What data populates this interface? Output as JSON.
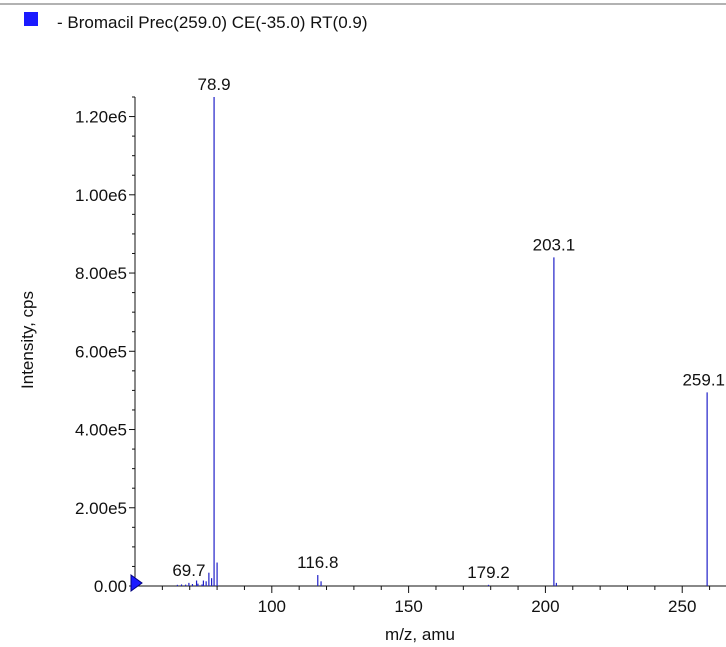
{
  "chart_data": {
    "type": "bar",
    "title": "- Bromacil Prec(259.0) CE(-35.0) RT(0.9)",
    "xlabel": "m/z, amu",
    "ylabel": "Intensity, cps",
    "xlim": [
      50,
      266
    ],
    "ylim": [
      0,
      1250000
    ],
    "x_ticks": [
      100,
      150,
      200,
      250
    ],
    "x_tick_labels": [
      "100",
      "150",
      "200",
      "250"
    ],
    "y_ticks": [
      0,
      200000,
      400000,
      600000,
      800000,
      1000000,
      1200000
    ],
    "y_tick_labels": [
      "0.00",
      "2.00e5",
      "4.00e5",
      "6.00e5",
      "8.00e5",
      "1.00e6",
      "1.20e6"
    ],
    "legend_color": "#1a1aff",
    "bar_color": "#2020c8",
    "series": [
      {
        "x": [
          65.5,
          67.0,
          68.5,
          69.7,
          71.0,
          72.5,
          73.0,
          74.5,
          75.0,
          76.0,
          77.0,
          78.0,
          78.9,
          80.0,
          116.8,
          118.0,
          179.2,
          203.1,
          204.0,
          259.1
        ],
        "values": [
          3000,
          4000,
          3500,
          8000,
          5000,
          14000,
          6000,
          4000,
          14000,
          12000,
          34000,
          20000,
          1250000,
          60000,
          28000,
          12000,
          3000,
          840000,
          8000,
          495000
        ]
      }
    ],
    "peak_labels": [
      {
        "x": 78.9,
        "y": 1250000,
        "text": "78.9"
      },
      {
        "x": 203.1,
        "y": 840000,
        "text": "203.1"
      },
      {
        "x": 259.1,
        "y": 495000,
        "text": "259.1"
      },
      {
        "x": 116.8,
        "y": 28000,
        "text": "116.8"
      },
      {
        "x": 69.7,
        "y": 8000,
        "text": "69.7"
      },
      {
        "x": 179.2,
        "y": 3000,
        "text": "179.2"
      }
    ]
  }
}
